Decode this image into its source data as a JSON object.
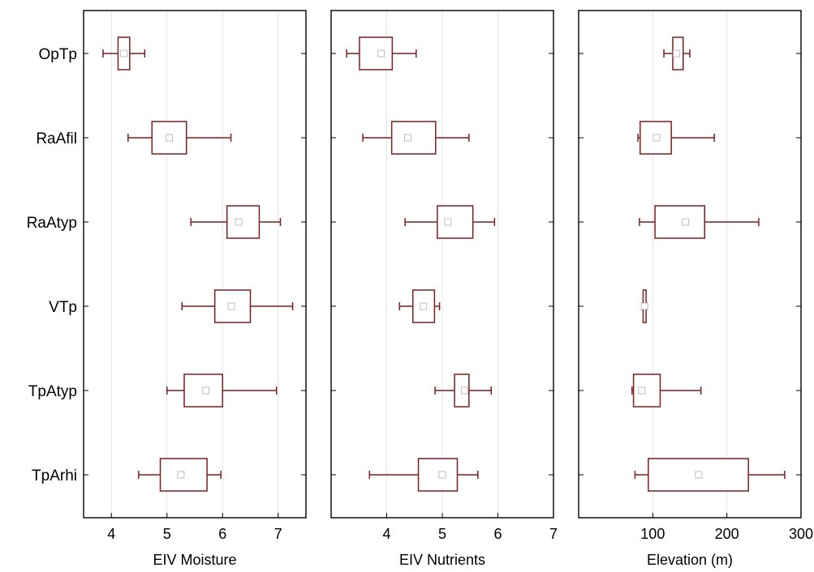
{
  "categories": [
    "OpTp",
    "RaAfil",
    "RaAtyp",
    "VTp",
    "TpAtyp",
    "TpArhi"
  ],
  "colors": {
    "box": "#7b1f1f",
    "mean": "#bdbdbd",
    "grid": "#e4e4e4",
    "frame": "#000000"
  },
  "chart_data": [
    {
      "type": "boxplot",
      "orientation": "horizontal",
      "xlabel": "EIV Moisture",
      "xlim": [
        3.5,
        7.5
      ],
      "xticks": [
        4,
        5,
        6,
        7
      ],
      "grid": true,
      "categories": [
        "OpTp",
        "RaAfil",
        "RaAtyp",
        "VTp",
        "TpAtyp",
        "TpArhi"
      ],
      "boxes": [
        {
          "category": "OpTp",
          "whisker_low": 3.85,
          "q1": 4.12,
          "q3": 4.33,
          "whisker_high": 4.6,
          "mean": 4.22
        },
        {
          "category": "RaAfil",
          "whisker_low": 4.3,
          "q1": 4.73,
          "q3": 5.35,
          "whisker_high": 6.15,
          "mean": 5.04
        },
        {
          "category": "RaAtyp",
          "whisker_low": 5.43,
          "q1": 6.08,
          "q3": 6.66,
          "whisker_high": 7.04,
          "mean": 6.29
        },
        {
          "category": "VTp",
          "whisker_low": 5.27,
          "q1": 5.86,
          "q3": 6.5,
          "whisker_high": 7.26,
          "mean": 6.16
        },
        {
          "category": "TpAtyp",
          "whisker_low": 5.0,
          "q1": 5.31,
          "q3": 6.0,
          "whisker_high": 6.97,
          "mean": 5.7
        },
        {
          "category": "TpArhi",
          "whisker_low": 4.49,
          "q1": 4.88,
          "q3": 5.72,
          "whisker_high": 5.97,
          "mean": 5.25
        }
      ]
    },
    {
      "type": "boxplot",
      "orientation": "horizontal",
      "xlabel": "EIV Nutrients",
      "xlim": [
        3,
        7
      ],
      "xticks": [
        4,
        5,
        6,
        7
      ],
      "grid": true,
      "categories": [
        "OpTp",
        "RaAfil",
        "RaAtyp",
        "VTp",
        "TpAtyp",
        "TpArhi"
      ],
      "boxes": [
        {
          "category": "OpTp",
          "whisker_low": 3.28,
          "q1": 3.51,
          "q3": 4.1,
          "whisker_high": 4.53,
          "mean": 3.9
        },
        {
          "category": "RaAfil",
          "whisker_low": 3.57,
          "q1": 4.09,
          "q3": 4.88,
          "whisker_high": 5.48,
          "mean": 4.38
        },
        {
          "category": "RaAtyp",
          "whisker_low": 4.33,
          "q1": 4.91,
          "q3": 5.55,
          "whisker_high": 5.94,
          "mean": 5.1
        },
        {
          "category": "VTp",
          "whisker_low": 4.23,
          "q1": 4.47,
          "q3": 4.86,
          "whisker_high": 4.95,
          "mean": 4.66
        },
        {
          "category": "TpAtyp",
          "whisker_low": 4.87,
          "q1": 5.22,
          "q3": 5.48,
          "whisker_high": 5.88,
          "mean": 5.4
        },
        {
          "category": "TpArhi",
          "whisker_low": 3.69,
          "q1": 4.57,
          "q3": 5.27,
          "whisker_high": 5.64,
          "mean": 5.0
        }
      ]
    },
    {
      "type": "boxplot",
      "orientation": "horizontal",
      "xlabel": "Elevation (m)",
      "xlim": [
        0,
        300
      ],
      "xticks": [
        100,
        200,
        300
      ],
      "grid": true,
      "categories": [
        "OpTp",
        "RaAfil",
        "RaAtyp",
        "VTp",
        "TpAtyp",
        "TpArhi"
      ],
      "boxes": [
        {
          "category": "OpTp",
          "whisker_low": 115,
          "q1": 127,
          "q3": 141,
          "whisker_high": 150,
          "mean": 132
        },
        {
          "category": "RaAfil",
          "whisker_low": 80,
          "q1": 83,
          "q3": 125,
          "whisker_high": 183,
          "mean": 105
        },
        {
          "category": "RaAtyp",
          "whisker_low": 82,
          "q1": 103,
          "q3": 170,
          "whisker_high": 243,
          "mean": 144
        },
        {
          "category": "VTp",
          "whisker_low": 86,
          "q1": 87,
          "q3": 91,
          "whisker_high": 92,
          "mean": 89
        },
        {
          "category": "TpAtyp",
          "whisker_low": 72,
          "q1": 74,
          "q3": 110,
          "whisker_high": 165,
          "mean": 85
        },
        {
          "category": "TpArhi",
          "whisker_low": 76,
          "q1": 94,
          "q3": 229,
          "whisker_high": 278,
          "mean": 162
        }
      ]
    }
  ]
}
